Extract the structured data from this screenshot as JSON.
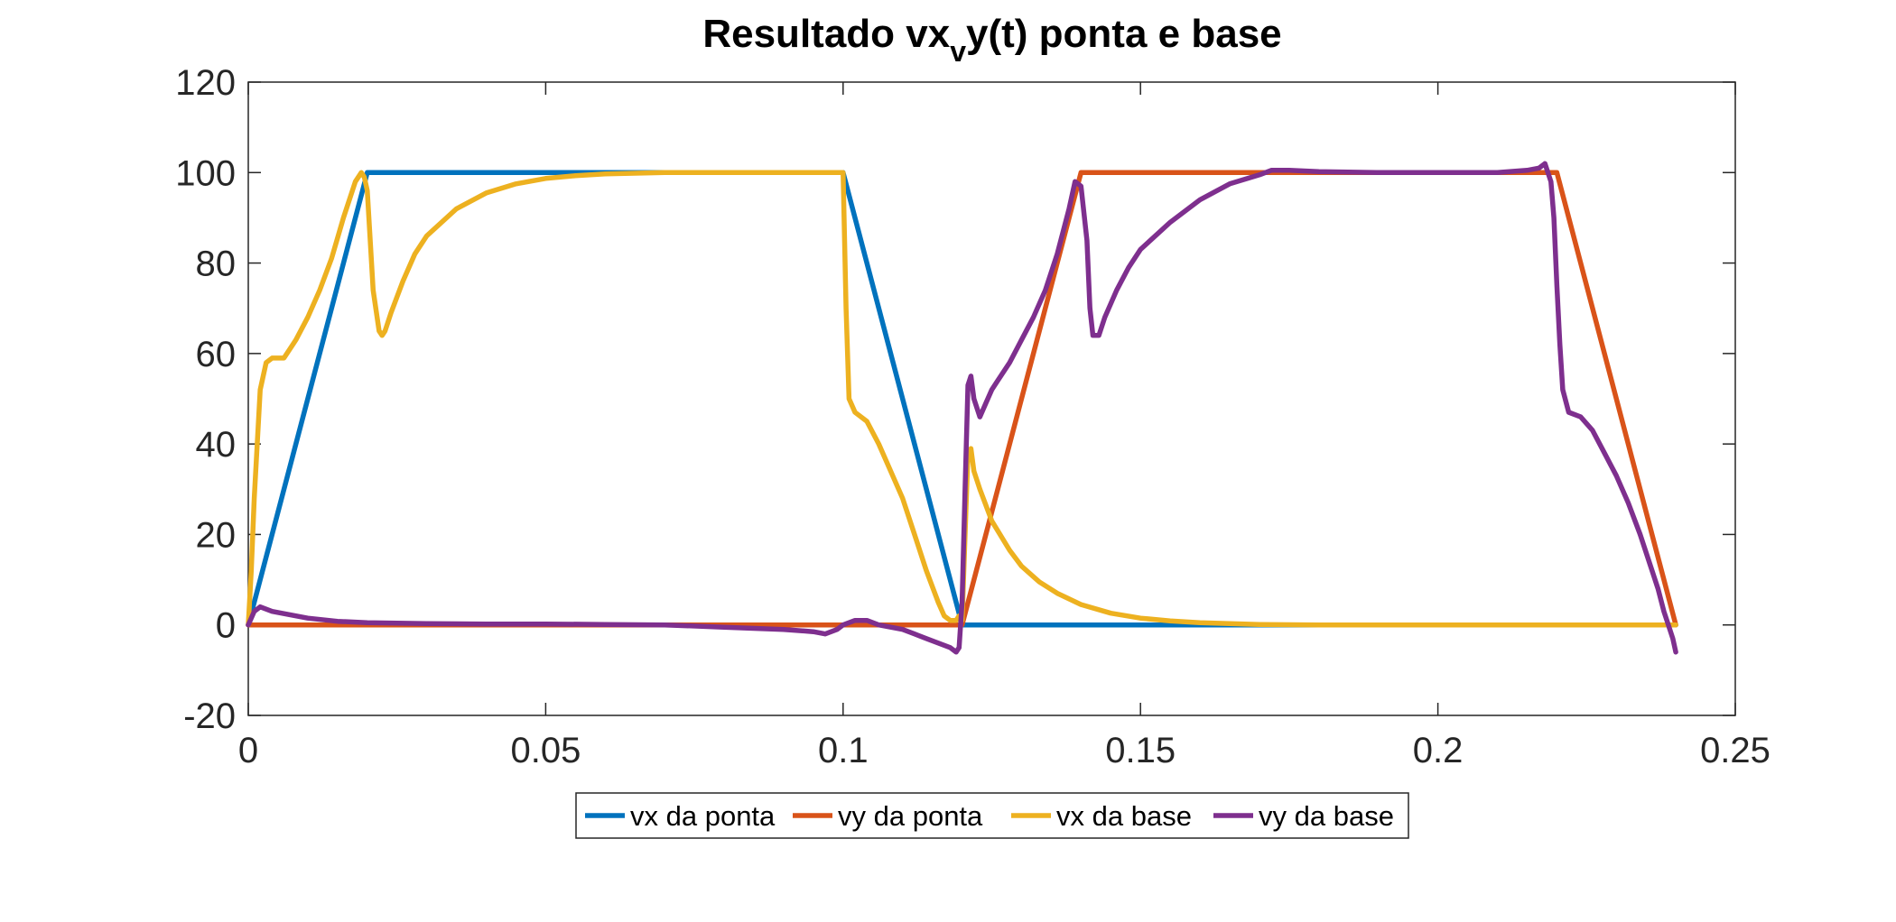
{
  "chart_data": {
    "type": "line",
    "title_main": "Resultado vx",
    "title_sub": "v",
    "title_rest": "y(t) ponta e base",
    "xlim": [
      0,
      0.25
    ],
    "ylim": [
      -20,
      120
    ],
    "x_ticks": [
      0,
      0.05,
      0.1,
      0.15,
      0.2,
      0.25
    ],
    "x_tick_labels": [
      "0",
      "0.05",
      "0.1",
      "0.15",
      "0.2",
      "0.25"
    ],
    "y_ticks": [
      -20,
      0,
      20,
      40,
      60,
      80,
      100,
      120
    ],
    "y_tick_labels": [
      "-20",
      "0",
      "20",
      "40",
      "60",
      "80",
      "100",
      "120"
    ],
    "grid": false,
    "box": true,
    "legend_position": "bottom-outside",
    "series": [
      {
        "name": "vx da ponta",
        "color": "#0072BD",
        "x": [
          0,
          0.02,
          0.1,
          0.12,
          0.24
        ],
        "y": [
          0,
          100,
          100,
          0,
          0
        ]
      },
      {
        "name": "vy da ponta",
        "color": "#D95319",
        "x": [
          0,
          0.12,
          0.14,
          0.22,
          0.24
        ],
        "y": [
          0,
          0,
          100,
          100,
          0
        ]
      },
      {
        "name": "vx da base",
        "color": "#EDB120",
        "x": [
          0,
          0.0005,
          0.001,
          0.002,
          0.003,
          0.004,
          0.006,
          0.008,
          0.01,
          0.012,
          0.014,
          0.016,
          0.018,
          0.019,
          0.0195,
          0.02,
          0.021,
          0.022,
          0.0225,
          0.023,
          0.024,
          0.026,
          0.028,
          0.03,
          0.035,
          0.04,
          0.045,
          0.05,
          0.055,
          0.06,
          0.07,
          0.08,
          0.09,
          0.097,
          0.099,
          0.1,
          0.1005,
          0.101,
          0.102,
          0.104,
          0.106,
          0.108,
          0.11,
          0.112,
          0.114,
          0.116,
          0.117,
          0.118,
          0.119,
          0.1195,
          0.12,
          0.121,
          0.1215,
          0.122,
          0.123,
          0.125,
          0.128,
          0.13,
          0.133,
          0.136,
          0.14,
          0.145,
          0.15,
          0.155,
          0.16,
          0.165,
          0.17,
          0.18,
          0.19,
          0.2,
          0.21,
          0.22,
          0.23,
          0.24
        ],
        "y": [
          0,
          12,
          28,
          52,
          58,
          59,
          59,
          63,
          68,
          74,
          81,
          90,
          98,
          100,
          99,
          96,
          74,
          65,
          64,
          65,
          69,
          76,
          82,
          86,
          92,
          95.5,
          97.5,
          98.7,
          99.3,
          99.7,
          100,
          100,
          100,
          100,
          100,
          100,
          70,
          50,
          47,
          45,
          40,
          34,
          28,
          20,
          12,
          5,
          2,
          1,
          1,
          2,
          1,
          38,
          39,
          34,
          30,
          23,
          16.5,
          13,
          9.5,
          7,
          4.5,
          2.6,
          1.5,
          0.9,
          0.5,
          0.3,
          0.1,
          0,
          0,
          0,
          0,
          0,
          0,
          0
        ]
      },
      {
        "name": "vy da base",
        "color": "#7E2F8E",
        "x": [
          0,
          0.001,
          0.002,
          0.004,
          0.006,
          0.01,
          0.015,
          0.02,
          0.03,
          0.04,
          0.05,
          0.06,
          0.07,
          0.08,
          0.09,
          0.095,
          0.097,
          0.099,
          0.1,
          0.102,
          0.104,
          0.106,
          0.108,
          0.11,
          0.112,
          0.114,
          0.116,
          0.118,
          0.119,
          0.1195,
          0.12,
          0.1205,
          0.121,
          0.1215,
          0.122,
          0.123,
          0.124,
          0.125,
          0.126,
          0.128,
          0.13,
          0.132,
          0.134,
          0.136,
          0.138,
          0.139,
          0.14,
          0.141,
          0.1415,
          0.142,
          0.143,
          0.144,
          0.146,
          0.148,
          0.15,
          0.155,
          0.16,
          0.165,
          0.17,
          0.172,
          0.175,
          0.18,
          0.19,
          0.2,
          0.21,
          0.215,
          0.217,
          0.218,
          0.219,
          0.2195,
          0.22,
          0.2205,
          0.221,
          0.222,
          0.224,
          0.226,
          0.228,
          0.23,
          0.232,
          0.234,
          0.236,
          0.237,
          0.238,
          0.239,
          0.2395,
          0.24
        ],
        "y": [
          0,
          3,
          4,
          3,
          2.5,
          1.5,
          0.8,
          0.5,
          0.3,
          0.2,
          0.2,
          0.1,
          0,
          -0.5,
          -1,
          -1.5,
          -2,
          -1,
          0,
          1,
          1,
          0,
          -0.5,
          -1,
          -2,
          -3,
          -4,
          -5,
          -6,
          -5,
          5,
          30,
          53,
          55,
          50,
          46,
          49,
          52,
          54,
          58,
          63,
          68,
          74,
          82,
          92,
          98,
          97,
          85,
          70,
          64,
          64,
          68,
          74,
          79,
          83,
          89,
          94,
          97.5,
          99.5,
          100.5,
          100.5,
          100.2,
          100,
          100,
          100,
          100.5,
          101,
          102,
          98,
          90,
          75,
          62,
          52,
          47,
          46,
          43,
          38,
          33,
          27,
          20,
          12,
          8,
          3,
          -1,
          -3,
          -6
        ]
      }
    ]
  }
}
